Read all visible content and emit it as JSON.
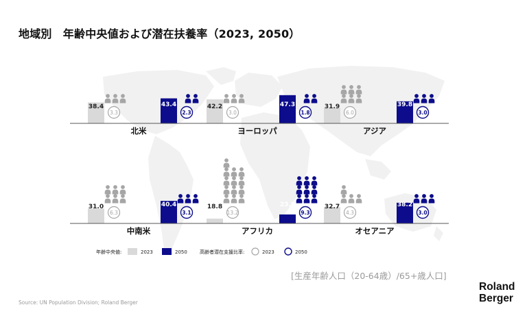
{
  "title": "地域別　年齢中央値および潜在扶養率（2023, 2050）",
  "note": "[生産年齢人口（20-64歳）/65+歳人口]",
  "source": "Source: UN Population Division; Roland Berger",
  "brand": {
    "line1": "Roland",
    "line2": "Berger"
  },
  "colors": {
    "bar_2023": "#d9d9d9",
    "bar_2050": "#0c0c8c",
    "icon_2023": "#a6a6a6",
    "icon_2050": "#0c0c8c",
    "map": "#f1f1f1"
  },
  "legend": {
    "median_label": "年齢中央値:",
    "support_label": "高齢者潜在支援比率:",
    "year_2023": "2023",
    "year_2050": "2050"
  },
  "chart_data": {
    "type": "bar",
    "title": "地域別　年齢中央値および潜在扶養率（2023, 2050）",
    "categories": [
      "北米",
      "ヨーロッパ",
      "アジア",
      "中南米",
      "アフリカ",
      "オセアニア"
    ],
    "series": [
      {
        "name": "2023",
        "measure": "年齢中央値",
        "values": [
          38.4,
          42.2,
          31.9,
          31.0,
          18.8,
          32.7
        ]
      },
      {
        "name": "2050",
        "measure": "年齢中央値",
        "values": [
          43.4,
          47.3,
          39.8,
          40.4,
          23.9,
          38.2
        ]
      },
      {
        "name": "2023",
        "measure": "高齢者潜在支援比率",
        "values": [
          3.3,
          3.0,
          6.0,
          6.3,
          13.2,
          4.3
        ]
      },
      {
        "name": "2050",
        "measure": "高齢者潜在支援比率",
        "values": [
          2.3,
          1.8,
          3.0,
          3.1,
          9.3,
          3.0
        ]
      }
    ]
  }
}
